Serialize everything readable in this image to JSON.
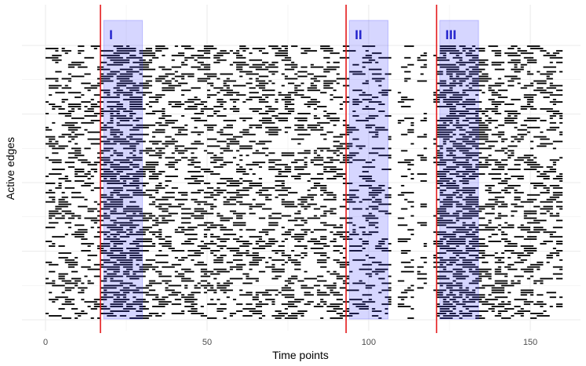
{
  "chart_data": {
    "type": "heatmap",
    "xlabel": "Time points",
    "ylabel": "Active edges",
    "xlim": [
      -1,
      166
    ],
    "ylim": [
      0,
      1
    ],
    "x_ticks": [
      0,
      50,
      100,
      150
    ],
    "x_tick_labels": [
      "0",
      "50",
      "100",
      "150"
    ],
    "grid": true,
    "time_points": 160,
    "change_points": [
      17,
      93,
      121
    ],
    "highlight_regions": [
      {
        "label": "I",
        "start": 18,
        "end": 30
      },
      {
        "label": "II",
        "start": 94,
        "end": 106
      },
      {
        "label": "III",
        "start": 122,
        "end": 134
      }
    ],
    "segments": [
      {
        "start": 0,
        "end": 17,
        "density": 0.18
      },
      {
        "start": 17,
        "end": 30,
        "density": 0.45
      },
      {
        "start": 30,
        "end": 93,
        "density": 0.22
      },
      {
        "start": 93,
        "end": 106,
        "density": 0.14
      },
      {
        "start": 106,
        "end": 121,
        "density": 0.1
      },
      {
        "start": 121,
        "end": 134,
        "density": 0.5
      },
      {
        "start": 134,
        "end": 160,
        "density": 0.22
      }
    ],
    "gaps": [
      [
        107,
        109
      ],
      [
        114,
        115
      ],
      [
        118,
        120
      ]
    ],
    "colors": {
      "edge": "#000000",
      "change_point": "#e41a1c",
      "region_fill": "#3333ff",
      "region_label": "#2222cc",
      "grid": "#ebebeb"
    }
  }
}
